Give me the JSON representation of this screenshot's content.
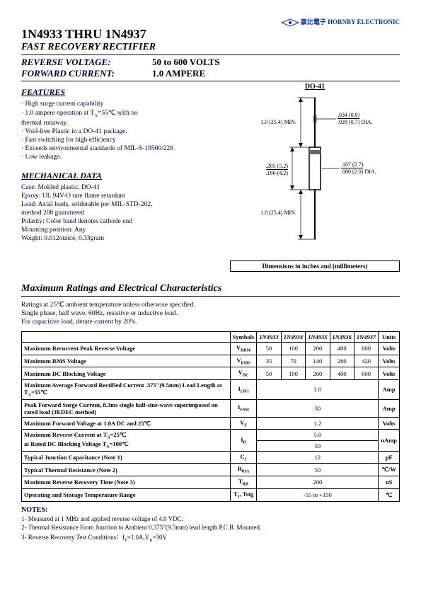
{
  "logo_text": "康比電子 HORNBY ELECTRONIC",
  "title": "1N4933 THRU 1N4937",
  "subtitle": "FAST RECOVERY RECTIFIER",
  "rev_voltage_label": "REVERSE VOLTAGE:",
  "rev_voltage_value": "50 to 600 VOLTS",
  "fwd_current_label": "FORWARD CURRENT:",
  "fwd_current_value": "1.0 AMPERE",
  "features_hdr": "FEATURES",
  "features": [
    "· High surge current capability",
    "· 1.0 ampere operation at T_A=55℃ with no",
    "  thermal runaway.",
    "· Void-free Plastic in a DO-41 package.",
    "· Fast switching for high efficiency",
    "· Exceeds environmental standards of MIL-S-19500/228",
    "· Low leakage."
  ],
  "mech_hdr": "MECHANICAL DATA",
  "mech": [
    "Case: Molded plastic, DO-41",
    "Epoxy: UL 94V-O rate flame retardant",
    "Lead: Axial leads, solderable per MIL-STD-202,",
    "method 208 guaranteed",
    "Polarity: Color band denotes cathode end",
    "Mounting position: Any",
    "Weight: 0.012ounce, 0.33gram"
  ],
  "pkg_label": "DO-41",
  "diagram": {
    "top_min": "1.0 (25.4) MIN.",
    "bot_min": "1.0 (25.4) MIN.",
    "lead_dia1": ".034 (0.9)",
    "lead_dia2": ".028 (0.7)",
    "lead_dia_suffix": "DIA.",
    "body_len1": ".205 (5.2)",
    "body_len2": ".166 (4.2)",
    "body_dia1": ".107 (2.7)",
    "body_dia2": ".080 (2.0)",
    "body_dia_suffix": "DIA."
  },
  "dim_caption": "Dimensions in inches and (millimeters)",
  "ratings_hdr": "Maximum Ratings and Electrical Characteristics",
  "ratings_intro": [
    "Ratings at 25℃ ambient temperature unless otherwise specified.",
    "Single phase, half wave, 60Hz, resistive or inductive load.",
    "For capacitive load, derate current by 20%."
  ],
  "table": {
    "headers": [
      "",
      "Symbols",
      "1N4933",
      "1N4934",
      "1N4935",
      "1N4936",
      "1N4937",
      "Units"
    ],
    "rows": [
      {
        "label": "Maximum Recurrent Peak Reverse Voltage",
        "sym": "V_RRM",
        "v": [
          "50",
          "100",
          "200",
          "400",
          "600"
        ],
        "unit": "Volts"
      },
      {
        "label": "Maximum RMS Voltage",
        "sym": "V_RMS",
        "v": [
          "35",
          "70",
          "140",
          "280",
          "420"
        ],
        "unit": "Volts"
      },
      {
        "label": "Maximum DC Blocking Voltage",
        "sym": "V_DC",
        "v": [
          "50",
          "100",
          "200",
          "400",
          "600"
        ],
        "unit": "Volts"
      },
      {
        "label": "Maximum Average Forward Rectified Current .375\"(9.5mm) Lead Length at T_A=55℃",
        "sym": "I_(AV)",
        "span": "1.0",
        "unit": "Amp"
      },
      {
        "label": "Peak Forward Surge Current, 8.3ms single half-sine-wave superimposed on rated load (JEDEC method)",
        "sym": "I_FSM",
        "span": "30",
        "unit": "Amp"
      },
      {
        "label": "Maximum Forward Voltage at 1.0A DC and 25℃",
        "sym": "V_F",
        "span": "1.2",
        "unit": "Volts"
      },
      {
        "label": "Maximum Reverse Current       at T_A=25℃\nat Rated DC Blocking Voltage    T_A=100℃",
        "sym": "I_R",
        "spanrows": [
          "5.0",
          "50"
        ],
        "unit": "uAmp"
      },
      {
        "label": "Typical Junction Capacitance (Note 1)",
        "sym": "C_J",
        "span": "12",
        "unit": "pF"
      },
      {
        "label": "Typical Thermal Resistance (Note 2)",
        "sym": "R_θJA",
        "span": "50",
        "unit": "℃/W"
      },
      {
        "label": "Maximum Reverse Recovery Time (Note 3)",
        "sym": "T_RR",
        "span": "200",
        "unit": "nS"
      },
      {
        "label": "Operating and Storage Temperature Range",
        "sym": "T_J,  Tstg",
        "span": "-55 to +150",
        "unit": "℃"
      }
    ]
  },
  "notes_hdr": "NOTES:",
  "notes": [
    "1- Measured at 1 MHz and applied reverse voltage of 4.0 VDC.",
    "2- Thermal Resistance From Junction to Ambient 0.375\"(9.5mm) lead length P.C.B. Mounted.",
    "3- Reverse Recovery Test Conditions：I_F=1.0A,V_R=30V"
  ]
}
